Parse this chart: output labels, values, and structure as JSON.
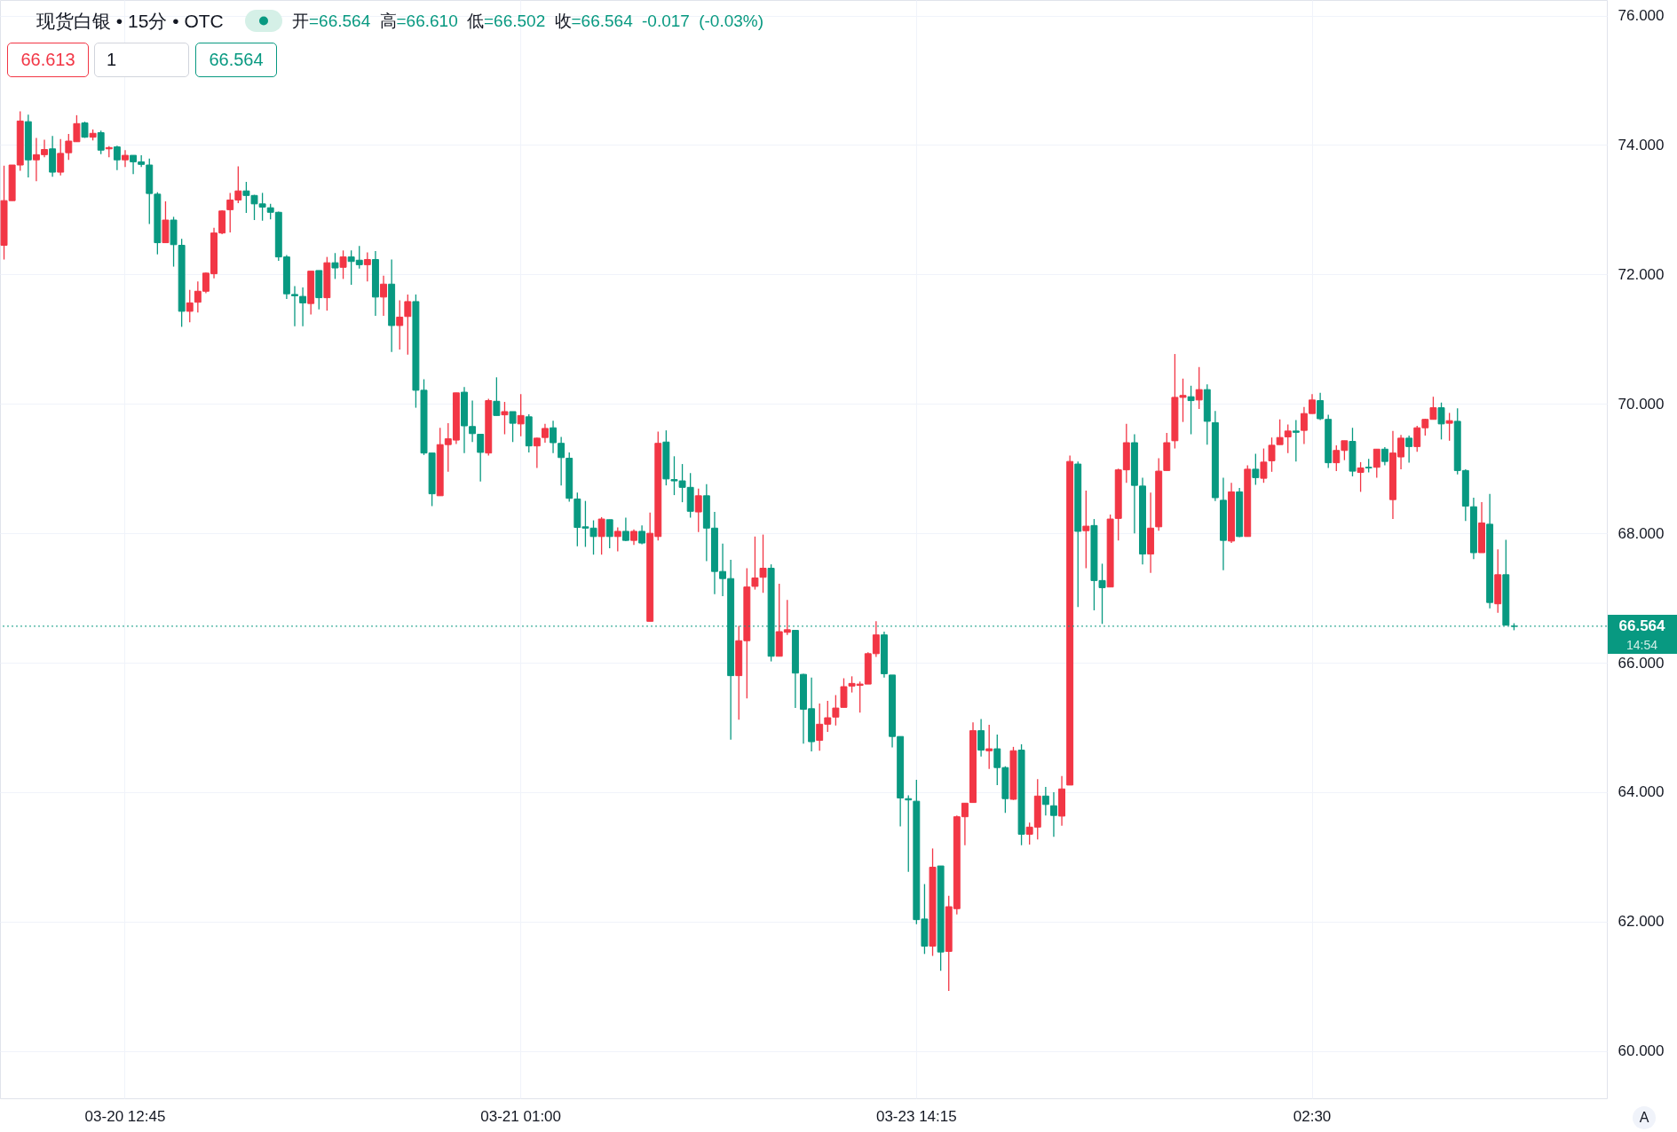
{
  "chart_data": {
    "type": "candlestick",
    "title": "现货白银 • 15分 • OTC",
    "subtitle": "开=66.564 高=66.610 低=66.502 收=66.564 -0.017 (-0.03%)",
    "categories": [
      null,
      null,
      null,
      null,
      null,
      null,
      null,
      null,
      null,
      null,
      null,
      null,
      null,
      null,
      null,
      "03-20 12:45",
      null,
      null,
      null,
      null,
      null,
      null,
      null,
      null,
      null,
      null,
      null,
      null,
      null,
      null,
      null,
      null,
      null,
      null,
      null,
      null,
      null,
      null,
      null,
      null,
      null,
      null,
      null,
      null,
      null,
      null,
      null,
      null,
      null,
      null,
      null,
      null,
      null,
      null,
      null,
      null,
      null,
      null,
      null,
      null,
      null,
      null,
      null,
      null,
      "03-21 01:00",
      null,
      null,
      null,
      null,
      null,
      null,
      null,
      null,
      null,
      null,
      null,
      null,
      null,
      null,
      null,
      null,
      null,
      null,
      null,
      null,
      null,
      null,
      null,
      null,
      null,
      null,
      null,
      null,
      null,
      null,
      null,
      null,
      null,
      null,
      null,
      null,
      null,
      null,
      null,
      null,
      null,
      null,
      null,
      null,
      null,
      null,
      null,
      null,
      "03-23 14:15",
      null,
      null,
      null,
      null,
      null,
      null,
      null,
      null,
      null,
      null,
      null,
      null,
      null,
      null,
      null,
      null,
      null,
      null,
      null,
      null,
      null,
      null,
      null,
      null,
      null,
      null,
      null,
      null,
      null,
      null,
      null,
      null,
      null,
      null,
      null,
      null,
      null,
      null,
      null,
      null,
      null,
      null,
      null,
      null,
      null,
      null,
      null,
      null,
      "02:30",
      null,
      null,
      null,
      null,
      null,
      null,
      null,
      null,
      null,
      null,
      null,
      null,
      null,
      null,
      null,
      null,
      null,
      null,
      null,
      null,
      null,
      null,
      null,
      null,
      null,
      null,
      null,
      null,
      null,
      null,
      null,
      null,
      null,
      null,
      null,
      null
    ],
    "ohlc": [
      [
        72.45,
        73.68,
        72.23,
        73.14
      ],
      [
        73.14,
        73.69,
        73.14,
        73.69
      ],
      [
        73.69,
        74.52,
        73.6,
        74.37
      ],
      [
        74.36,
        74.47,
        73.5,
        73.77
      ],
      [
        73.77,
        74.11,
        73.44,
        73.85
      ],
      [
        73.85,
        74.08,
        73.81,
        73.93
      ],
      [
        73.94,
        74.14,
        73.51,
        73.58
      ],
      [
        73.58,
        74.09,
        73.53,
        73.87
      ],
      [
        73.88,
        74.17,
        73.77,
        74.06
      ],
      [
        74.05,
        74.46,
        74.05,
        74.33
      ],
      [
        74.34,
        74.36,
        74.11,
        74.12
      ],
      [
        74.12,
        74.24,
        74.07,
        74.18
      ],
      [
        74.19,
        74.22,
        73.86,
        73.92
      ],
      [
        73.94,
        73.98,
        73.81,
        73.96
      ],
      [
        73.97,
        73.99,
        73.61,
        73.77
      ],
      [
        73.77,
        73.92,
        73.66,
        73.84
      ],
      [
        73.84,
        73.84,
        73.55,
        73.74
      ],
      [
        73.74,
        73.84,
        73.66,
        73.7
      ],
      [
        73.69,
        73.79,
        72.78,
        73.25
      ],
      [
        73.24,
        73.27,
        72.31,
        72.49
      ],
      [
        72.49,
        73.13,
        72.49,
        72.84
      ],
      [
        72.84,
        72.89,
        72.12,
        72.46
      ],
      [
        72.45,
        72.55,
        71.19,
        71.43
      ],
      [
        71.43,
        71.76,
        71.26,
        71.56
      ],
      [
        71.57,
        71.89,
        71.41,
        71.74
      ],
      [
        71.74,
        72.03,
        71.71,
        72.02
      ],
      [
        72.01,
        72.72,
        71.94,
        72.64
      ],
      [
        72.64,
        72.99,
        72.62,
        72.98
      ],
      [
        73.0,
        73.26,
        72.65,
        73.15
      ],
      [
        73.15,
        73.67,
        73.1,
        73.29
      ],
      [
        73.29,
        73.43,
        72.95,
        73.22
      ],
      [
        73.22,
        73.23,
        72.84,
        73.09
      ],
      [
        73.09,
        73.26,
        72.83,
        73.04
      ],
      [
        73.03,
        73.09,
        72.85,
        72.96
      ],
      [
        72.96,
        72.97,
        72.21,
        72.27
      ],
      [
        72.27,
        72.3,
        71.62,
        71.7
      ],
      [
        71.69,
        71.82,
        71.2,
        71.67
      ],
      [
        71.66,
        71.8,
        71.2,
        71.56
      ],
      [
        71.55,
        72.05,
        71.38,
        72.05
      ],
      [
        72.06,
        72.06,
        71.46,
        71.64
      ],
      [
        71.64,
        72.27,
        71.44,
        72.18
      ],
      [
        72.18,
        72.33,
        71.93,
        72.1
      ],
      [
        72.11,
        72.37,
        71.93,
        72.27
      ],
      [
        72.27,
        72.37,
        71.84,
        72.2
      ],
      [
        72.22,
        72.44,
        72.09,
        72.15
      ],
      [
        72.15,
        72.34,
        71.89,
        72.23
      ],
      [
        72.23,
        72.36,
        71.36,
        71.65
      ],
      [
        71.65,
        71.98,
        71.36,
        71.85
      ],
      [
        71.85,
        72.23,
        70.8,
        71.21
      ],
      [
        71.21,
        71.6,
        70.84,
        71.34
      ],
      [
        71.35,
        71.69,
        70.76,
        71.58
      ],
      [
        71.58,
        71.69,
        69.94,
        70.21
      ],
      [
        70.21,
        70.38,
        69.21,
        69.24
      ],
      [
        69.24,
        69.24,
        68.42,
        68.61
      ],
      [
        68.58,
        69.63,
        68.58,
        69.37
      ],
      [
        69.37,
        69.7,
        68.95,
        69.46
      ],
      [
        69.44,
        70.17,
        69.38,
        70.17
      ],
      [
        70.18,
        70.26,
        69.24,
        69.66
      ],
      [
        69.65,
        70.05,
        69.41,
        69.54
      ],
      [
        69.53,
        69.53,
        68.8,
        69.25
      ],
      [
        69.24,
        70.08,
        69.2,
        70.05
      ],
      [
        70.04,
        70.41,
        69.82,
        69.82
      ],
      [
        69.83,
        70.03,
        69.53,
        69.88
      ],
      [
        69.88,
        69.88,
        69.41,
        69.7
      ],
      [
        69.69,
        70.15,
        69.5,
        69.82
      ],
      [
        69.8,
        69.84,
        69.25,
        69.35
      ],
      [
        69.35,
        69.48,
        69.01,
        69.47
      ],
      [
        69.48,
        69.69,
        69.4,
        69.62
      ],
      [
        69.63,
        69.74,
        69.24,
        69.4
      ],
      [
        69.39,
        69.49,
        68.74,
        69.17
      ],
      [
        69.16,
        69.25,
        68.49,
        68.54
      ],
      [
        68.53,
        68.63,
        67.8,
        68.09
      ],
      [
        68.1,
        68.5,
        67.79,
        68.08
      ],
      [
        68.08,
        68.2,
        67.67,
        67.95
      ],
      [
        67.95,
        68.25,
        67.67,
        68.22
      ],
      [
        68.21,
        68.21,
        67.77,
        67.95
      ],
      [
        67.95,
        68.09,
        67.72,
        68.03
      ],
      [
        68.03,
        68.24,
        67.88,
        67.89
      ],
      [
        67.89,
        68.06,
        67.82,
        68.03
      ],
      [
        68.03,
        68.12,
        67.83,
        67.85
      ],
      [
        66.64,
        68.32,
        66.64,
        68.0
      ],
      [
        67.95,
        69.57,
        67.89,
        69.39
      ],
      [
        69.41,
        69.59,
        68.74,
        68.84
      ],
      [
        68.83,
        69.19,
        68.59,
        68.81
      ],
      [
        68.81,
        69.07,
        68.48,
        68.71
      ],
      [
        68.71,
        68.93,
        68.24,
        68.34
      ],
      [
        68.33,
        68.69,
        68.02,
        68.58
      ],
      [
        68.58,
        68.76,
        67.57,
        68.08
      ],
      [
        68.08,
        68.33,
        67.06,
        67.41
      ],
      [
        67.41,
        67.84,
        67.03,
        67.3
      ],
      [
        67.3,
        67.59,
        64.81,
        65.8
      ],
      [
        65.8,
        66.57,
        65.12,
        66.34
      ],
      [
        66.34,
        67.46,
        65.45,
        67.17
      ],
      [
        67.18,
        67.95,
        67.13,
        67.31
      ],
      [
        67.32,
        67.98,
        67.08,
        67.46
      ],
      [
        67.46,
        67.52,
        66.02,
        66.1
      ],
      [
        66.1,
        67.22,
        66.1,
        66.48
      ],
      [
        66.47,
        66.97,
        66.43,
        66.51
      ],
      [
        66.5,
        66.5,
        65.3,
        65.84
      ],
      [
        65.82,
        65.83,
        64.75,
        65.28
      ],
      [
        65.29,
        65.77,
        64.63,
        64.78
      ],
      [
        64.8,
        65.37,
        64.64,
        65.05
      ],
      [
        65.05,
        65.41,
        64.93,
        65.15
      ],
      [
        65.16,
        65.5,
        65.03,
        65.3
      ],
      [
        65.31,
        65.76,
        65.31,
        65.63
      ],
      [
        65.64,
        65.79,
        65.54,
        65.68
      ],
      [
        65.65,
        65.71,
        65.23,
        65.67
      ],
      [
        65.67,
        66.16,
        65.67,
        66.14
      ],
      [
        66.14,
        66.64,
        66.09,
        66.43
      ],
      [
        66.43,
        66.48,
        65.77,
        65.83
      ],
      [
        65.81,
        65.81,
        64.69,
        64.86
      ],
      [
        64.86,
        64.86,
        63.47,
        63.91
      ],
      [
        63.9,
        63.95,
        62.77,
        63.88
      ],
      [
        63.86,
        64.19,
        61.96,
        62.03
      ],
      [
        62.04,
        62.58,
        61.5,
        61.62
      ],
      [
        61.62,
        63.13,
        61.47,
        62.84
      ],
      [
        62.86,
        62.86,
        61.24,
        61.53
      ],
      [
        61.54,
        62.4,
        60.93,
        62.23
      ],
      [
        62.2,
        63.64,
        62.11,
        63.62
      ],
      [
        63.62,
        63.83,
        63.18,
        63.83
      ],
      [
        63.84,
        65.08,
        63.84,
        64.95
      ],
      [
        64.95,
        65.13,
        64.55,
        64.65
      ],
      [
        64.64,
        65.04,
        64.36,
        64.67
      ],
      [
        64.67,
        64.89,
        64.11,
        64.38
      ],
      [
        64.38,
        64.4,
        63.68,
        63.9
      ],
      [
        63.89,
        64.7,
        63.88,
        64.64
      ],
      [
        64.65,
        64.74,
        63.18,
        63.35
      ],
      [
        63.35,
        63.53,
        63.19,
        63.46
      ],
      [
        63.46,
        64.2,
        63.27,
        63.94
      ],
      [
        63.94,
        64.08,
        63.64,
        63.81
      ],
      [
        63.79,
        64.0,
        63.31,
        63.64
      ],
      [
        63.63,
        64.25,
        63.48,
        64.05
      ],
      [
        64.11,
        69.2,
        64.11,
        69.11
      ],
      [
        69.07,
        69.11,
        66.86,
        68.03
      ],
      [
        68.04,
        68.66,
        67.46,
        68.11
      ],
      [
        68.12,
        68.22,
        66.81,
        67.27
      ],
      [
        67.27,
        67.53,
        66.6,
        67.16
      ],
      [
        67.17,
        68.29,
        67.17,
        68.22
      ],
      [
        68.23,
        69.0,
        67.89,
        68.98
      ],
      [
        68.98,
        69.69,
        68.78,
        69.4
      ],
      [
        69.4,
        69.53,
        68.0,
        68.74
      ],
      [
        68.73,
        68.86,
        67.52,
        67.68
      ],
      [
        67.68,
        68.63,
        67.39,
        68.08
      ],
      [
        68.1,
        69.16,
        68.04,
        68.96
      ],
      [
        68.97,
        69.55,
        68.97,
        69.4
      ],
      [
        69.43,
        70.77,
        69.31,
        70.1
      ],
      [
        70.1,
        70.39,
        69.72,
        70.13
      ],
      [
        70.11,
        70.28,
        69.53,
        70.05
      ],
      [
        70.06,
        70.57,
        69.92,
        70.22
      ],
      [
        70.22,
        70.3,
        69.37,
        69.73
      ],
      [
        69.71,
        69.89,
        68.5,
        68.55
      ],
      [
        68.51,
        68.86,
        67.43,
        67.89
      ],
      [
        67.88,
        68.78,
        67.85,
        68.64
      ],
      [
        68.64,
        68.7,
        67.94,
        67.95
      ],
      [
        67.95,
        69.05,
        67.95,
        68.99
      ],
      [
        68.99,
        69.23,
        68.75,
        68.86
      ],
      [
        68.85,
        69.31,
        68.78,
        69.1
      ],
      [
        69.12,
        69.48,
        68.95,
        69.36
      ],
      [
        69.37,
        69.76,
        69.37,
        69.48
      ],
      [
        69.49,
        69.68,
        69.24,
        69.58
      ],
      [
        69.58,
        69.75,
        69.11,
        69.56
      ],
      [
        69.59,
        69.95,
        69.38,
        69.85
      ],
      [
        69.85,
        70.15,
        69.85,
        70.06
      ],
      [
        70.05,
        70.17,
        69.75,
        69.77
      ],
      [
        69.76,
        69.83,
        69.01,
        69.09
      ],
      [
        69.09,
        69.36,
        68.96,
        69.28
      ],
      [
        69.28,
        69.43,
        69.13,
        69.43
      ],
      [
        69.42,
        69.63,
        68.88,
        68.96
      ],
      [
        68.94,
        69.1,
        68.64,
        69.01
      ],
      [
        69.02,
        69.15,
        68.94,
        69.01
      ],
      [
        69.02,
        69.3,
        68.86,
        69.3
      ],
      [
        69.3,
        69.33,
        69.05,
        69.11
      ],
      [
        68.52,
        69.58,
        68.22,
        69.24
      ],
      [
        69.18,
        69.52,
        68.99,
        69.47
      ],
      [
        69.47,
        69.51,
        69.09,
        69.34
      ],
      [
        69.34,
        69.66,
        69.26,
        69.63
      ],
      [
        69.63,
        69.77,
        69.51,
        69.76
      ],
      [
        69.76,
        70.11,
        69.76,
        69.94
      ],
      [
        69.94,
        70.02,
        69.45,
        69.69
      ],
      [
        69.7,
        69.86,
        69.43,
        69.74
      ],
      [
        69.73,
        69.93,
        68.91,
        68.97
      ],
      [
        68.97,
        68.99,
        68.19,
        68.42
      ],
      [
        68.41,
        68.55,
        67.6,
        67.7
      ],
      [
        67.7,
        68.48,
        67.7,
        68.16
      ],
      [
        68.14,
        68.61,
        66.84,
        66.93
      ],
      [
        66.91,
        67.75,
        66.77,
        67.36
      ],
      [
        67.36,
        67.9,
        66.58,
        66.58
      ],
      [
        66.564,
        66.61,
        66.502,
        66.564
      ],
      null,
      null,
      null,
      null,
      null,
      null,
      null,
      null,
      null,
      null,
      null
    ],
    "colors": [
      "#f23645",
      "#f23645",
      "#f23645",
      "#089981",
      "#f23645",
      "#f23645",
      "#089981",
      "#f23645",
      "#f23645",
      "#f23645",
      "#089981",
      "#f23645",
      "#089981",
      "#f23645",
      "#089981",
      "#f23645",
      "#089981",
      "#089981",
      "#089981",
      "#089981",
      "#f23645",
      "#089981",
      "#089981",
      "#f23645",
      "#f23645",
      "#f23645",
      "#f23645",
      "#f23645",
      "#f23645",
      "#f23645",
      "#089981",
      "#089981",
      "#089981",
      "#089981",
      "#089981",
      "#089981",
      "#089981",
      "#089981",
      "#f23645",
      "#089981",
      "#f23645",
      "#089981",
      "#f23645",
      "#089981",
      "#089981",
      "#f23645",
      "#089981",
      "#f23645",
      "#089981",
      "#f23645",
      "#f23645",
      "#089981",
      "#089981",
      "#089981",
      "#f23645",
      "#f23645",
      "#f23645",
      "#089981",
      "#089981",
      "#089981",
      "#f23645",
      "#089981",
      "#f23645",
      "#089981",
      "#f23645",
      "#089981",
      "#f23645",
      "#f23645",
      "#089981",
      "#089981",
      "#089981",
      "#089981",
      "#089981",
      "#089981",
      "#f23645",
      "#089981",
      "#f23645",
      "#089981",
      "#f23645",
      "#089981",
      "#f23645",
      "#f23645",
      "#089981",
      "#089981",
      "#089981",
      "#089981",
      "#f23645",
      "#089981",
      "#089981",
      "#089981",
      "#089981",
      "#f23645",
      "#f23645",
      "#f23645",
      "#f23645",
      "#089981",
      "#f23645",
      "#f23645",
      "#089981",
      "#089981",
      "#089981",
      "#f23645",
      "#f23645",
      "#f23645",
      "#f23645",
      "#f23645",
      "#f23645",
      "#f23645",
      "#f23645",
      "#089981",
      "#089981",
      "#089981",
      "#089981",
      "#089981",
      "#089981",
      "#f23645",
      "#089981",
      "#f23645",
      "#f23645",
      "#f23645",
      "#f23645",
      "#089981",
      "#f23645",
      "#089981",
      "#089981",
      "#f23645",
      "#089981",
      "#f23645",
      "#f23645",
      "#089981",
      "#089981",
      "#f23645",
      "#f23645",
      "#089981",
      "#f23645",
      "#089981",
      "#089981",
      "#f23645",
      "#f23645",
      "#f23645",
      "#089981",
      "#089981",
      "#f23645",
      "#f23645",
      "#f23645",
      "#f23645",
      "#f23645",
      "#089981",
      "#f23645",
      "#089981",
      "#089981",
      "#089981",
      "#f23645",
      "#089981",
      "#f23645",
      "#089981",
      "#f23645",
      "#f23645",
      "#f23645",
      "#f23645",
      "#089981",
      "#f23645",
      "#f23645",
      "#089981",
      "#089981",
      "#f23645",
      "#f23645",
      "#089981",
      "#f23645",
      "#089981",
      "#f23645",
      "#089981",
      "#f23645",
      "#f23645",
      "#089981",
      "#f23645",
      "#f23645",
      "#f23645",
      "#089981",
      "#f23645",
      "#089981",
      "#089981",
      "#089981",
      "#f23645",
      "#089981",
      "#f23645",
      "#089981",
      "#089981",
      null,
      null,
      null,
      null,
      null,
      null,
      null,
      null,
      null,
      null,
      null
    ],
    "ylim": [
      59.27,
      76.24
    ],
    "yticks": [
      {
        "value": 60,
        "label": "60.000"
      },
      {
        "value": 62,
        "label": "62.000"
      },
      {
        "value": 64,
        "label": "64.000"
      },
      {
        "value": 66,
        "label": "66.000"
      },
      {
        "value": 68,
        "label": "68.000"
      },
      {
        "value": 70,
        "label": "70.000"
      },
      {
        "value": 72,
        "label": "72.000"
      },
      {
        "value": 74,
        "label": "74.000"
      },
      {
        "value": 76,
        "label": "76.000"
      }
    ],
    "grid": true,
    "ref_lines": [
      {
        "axis": "y",
        "value": 66.564,
        "label": "66.564",
        "color": "#089981",
        "line_style": "dotted"
      }
    ],
    "annotations": [
      "66.613",
      "1",
      "66.564",
      "14:54",
      "A"
    ]
  }
}
